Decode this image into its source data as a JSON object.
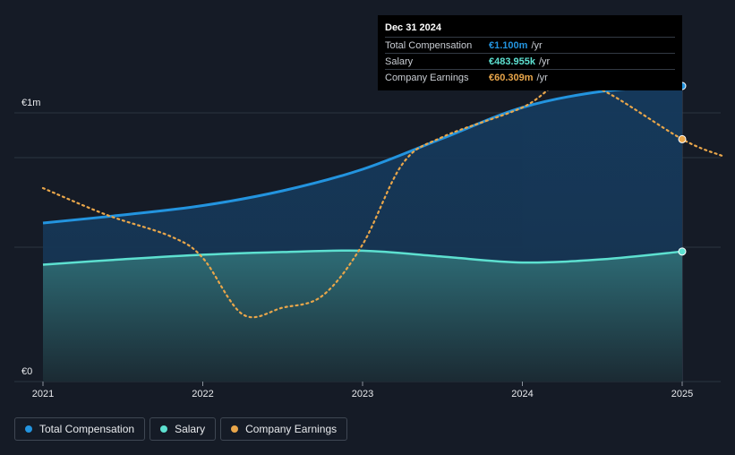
{
  "chart_data": {
    "type": "area",
    "x_ticks": [
      "2021",
      "2022",
      "2023",
      "2024",
      "2025"
    ],
    "y_tick_labels": [
      "€1m",
      "€0"
    ],
    "ylim": [
      0,
      1200000
    ],
    "grid": true,
    "legend_position": "bottom-left",
    "series": [
      {
        "name": "Total Compensation",
        "color": "#2394df",
        "points": [
          [
            2021.0,
            590000
          ],
          [
            2021.5,
            620000
          ],
          [
            2022.0,
            655000
          ],
          [
            2022.5,
            710000
          ],
          [
            2023.0,
            790000
          ],
          [
            2023.5,
            905000
          ],
          [
            2024.0,
            1020000
          ],
          [
            2024.5,
            1080000
          ],
          [
            2025.0,
            1100000
          ]
        ]
      },
      {
        "name": "Salary",
        "color": "#5de0d0",
        "points": [
          [
            2021.0,
            435000
          ],
          [
            2021.5,
            455000
          ],
          [
            2022.0,
            472000
          ],
          [
            2022.5,
            482000
          ],
          [
            2023.0,
            487000
          ],
          [
            2023.5,
            465000
          ],
          [
            2024.0,
            443000
          ],
          [
            2024.5,
            455000
          ],
          [
            2025.0,
            483955
          ]
        ]
      },
      {
        "name": "Company Earnings",
        "color": "#e9a64a",
        "points": [
          [
            2021.0,
            720000
          ],
          [
            2021.4,
            620000
          ],
          [
            2021.8,
            540000
          ],
          [
            2022.0,
            460000
          ],
          [
            2022.25,
            250000
          ],
          [
            2022.5,
            275000
          ],
          [
            2022.75,
            320000
          ],
          [
            2023.0,
            510000
          ],
          [
            2023.25,
            810000
          ],
          [
            2023.5,
            910000
          ],
          [
            2024.0,
            1020000
          ],
          [
            2024.25,
            1115000
          ],
          [
            2024.5,
            1085000
          ],
          [
            2025.0,
            902000
          ],
          [
            2025.25,
            840000
          ]
        ]
      }
    ],
    "highlight": {
      "start": 2024.0,
      "end": 2025.0
    }
  },
  "tooltip": {
    "date": "Dec 31 2024",
    "rows": [
      {
        "label": "Total Compensation",
        "value": "€1.100m",
        "unit": "/yr",
        "color": "#2394df"
      },
      {
        "label": "Salary",
        "value": "€483.955k",
        "unit": "/yr",
        "color": "#5de0d0"
      },
      {
        "label": "Company Earnings",
        "value": "€60.309m",
        "unit": "/yr",
        "color": "#e9a64a"
      }
    ]
  },
  "legend": [
    {
      "label": "Total Compensation",
      "color": "#2394df"
    },
    {
      "label": "Salary",
      "color": "#5de0d0"
    },
    {
      "label": "Company Earnings",
      "color": "#e9a64a"
    }
  ]
}
